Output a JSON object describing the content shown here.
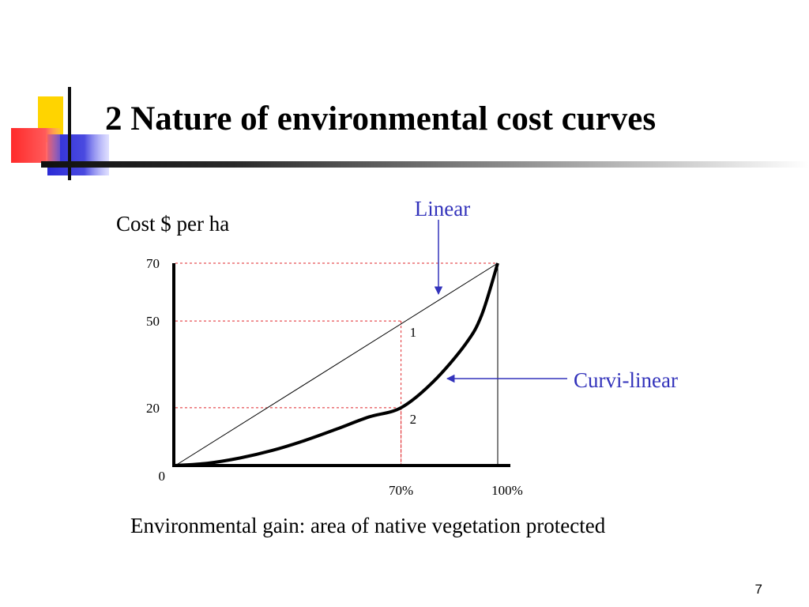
{
  "slide": {
    "title": "2 Nature of environmental cost curves",
    "page_number": "7"
  },
  "colors": {
    "accent_blue": "#3333bb",
    "guide_red": "#e0262a",
    "logo_yellow": "#ffd400",
    "logo_blue": "#2b2bd6",
    "logo_red": "#ff3030"
  },
  "chart_data": {
    "type": "line",
    "xlabel": "Environmental gain: area of native vegetation protected",
    "ylabel": "Cost $ per ha",
    "xlim": [
      0,
      100
    ],
    "ylim": [
      0,
      70
    ],
    "x_ticks": [
      {
        "value": 70,
        "label": "70%"
      },
      {
        "value": 100,
        "label": "100%"
      }
    ],
    "y_ticks": [
      {
        "value": 0,
        "label": "0"
      },
      {
        "value": 20,
        "label": "20"
      },
      {
        "value": 50,
        "label": "50"
      },
      {
        "value": 70,
        "label": "70"
      }
    ],
    "series": [
      {
        "name": "Linear",
        "x": [
          0,
          100
        ],
        "y": [
          0,
          70
        ]
      },
      {
        "name": "Curvi-linear",
        "x": [
          0,
          10,
          20,
          30,
          40,
          50,
          60,
          70,
          80,
          90,
          95,
          100
        ],
        "y": [
          0,
          0.8,
          2.6,
          5.2,
          8.6,
          12.6,
          16.8,
          20,
          29,
          42,
          52,
          70
        ]
      }
    ],
    "guides": [
      {
        "x": 70,
        "y": 50
      },
      {
        "x": 70,
        "y": 20
      },
      {
        "x": 100,
        "y": 70
      }
    ],
    "point_labels": [
      {
        "x": 70,
        "y": 50,
        "text": "1"
      },
      {
        "x": 70,
        "y": 20,
        "text": "2"
      }
    ]
  }
}
